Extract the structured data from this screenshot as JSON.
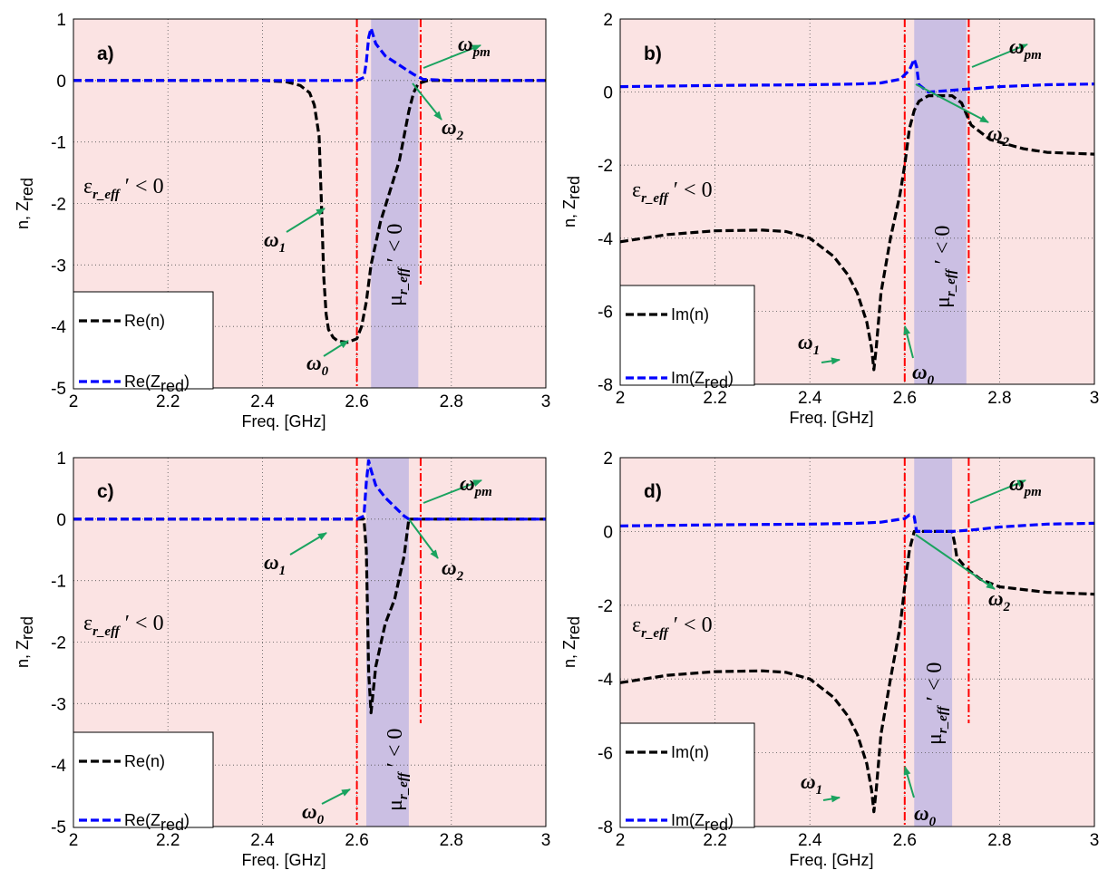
{
  "chart_data": [
    {
      "panel_label": "a)",
      "type": "line",
      "xlabel": "Freq. [GHz]",
      "ylabel": "n, Z",
      "ylabel_sub": "red",
      "xlim": [
        2,
        3
      ],
      "ylim": [
        -5,
        1
      ],
      "xticks": [
        "2",
        "2.2",
        "2.4",
        "2.6",
        "2.8",
        "3"
      ],
      "yticks": [
        "1",
        "0",
        "-1",
        "-2",
        "-3",
        "-4",
        "-5"
      ],
      "grid": true,
      "shaded_band": [
        2.63,
        2.73
      ],
      "vlines": [
        2.6,
        2.735
      ],
      "legend": {
        "placement": "bottom-left",
        "entries": [
          "Re(n)",
          "Re(Z"
        ],
        "sub": [
          "",
          "red"
        ],
        "close": [
          "",
          ")"
        ]
      },
      "region_labels": {
        "eps": "ε",
        "eps_sub": "r_eff",
        "eps_rest": "′ < 0",
        "mu": "μ",
        "mu_sub": "r_eff",
        "mu_rest": "′ < 0"
      },
      "annotations": [
        {
          "text": "ω",
          "sub": "pm"
        },
        {
          "text": "ω",
          "sub": "2"
        },
        {
          "text": "ω",
          "sub": "1"
        },
        {
          "text": "ω",
          "sub": "0"
        }
      ],
      "series": [
        {
          "name": "Re(n)",
          "color": "#000000",
          "x": [
            2.0,
            2.2,
            2.4,
            2.45,
            2.48,
            2.5,
            2.51,
            2.52,
            2.525,
            2.53,
            2.535,
            2.54,
            2.55,
            2.56,
            2.58,
            2.6,
            2.61,
            2.62,
            2.63,
            2.65,
            2.67,
            2.69,
            2.7,
            2.71,
            2.72,
            2.73,
            2.75,
            2.8,
            3.0
          ],
          "y": [
            0,
            0,
            0,
            -0.02,
            -0.08,
            -0.2,
            -0.4,
            -0.9,
            -2.0,
            -3.2,
            -3.8,
            -4.05,
            -4.18,
            -4.24,
            -4.26,
            -4.2,
            -4.0,
            -3.6,
            -3.0,
            -2.3,
            -1.8,
            -1.3,
            -0.9,
            -0.5,
            -0.2,
            -0.05,
            0,
            0,
            0
          ]
        },
        {
          "name": "Re(Z)",
          "color": "#0000ff",
          "x": [
            2.0,
            2.5,
            2.6,
            2.615,
            2.62,
            2.625,
            2.63,
            2.64,
            2.66,
            2.68,
            2.7,
            2.72,
            2.74,
            2.8,
            3.0
          ],
          "y": [
            0,
            0,
            0,
            0.05,
            0.3,
            0.7,
            0.85,
            0.6,
            0.4,
            0.3,
            0.2,
            0.1,
            0.02,
            0,
            0
          ]
        }
      ]
    },
    {
      "panel_label": "b)",
      "type": "line",
      "xlabel": "Freq. [GHz]",
      "ylabel": "n, Z",
      "ylabel_sub": "red",
      "xlim": [
        2,
        3
      ],
      "ylim": [
        -8,
        2
      ],
      "xticks": [
        "2",
        "2.2",
        "2.4",
        "2.6",
        "2.8",
        "3"
      ],
      "yticks": [
        "2",
        "0",
        "-2",
        "-4",
        "-6",
        "-8"
      ],
      "grid": true,
      "shaded_band": [
        2.62,
        2.73
      ],
      "vlines": [
        2.6,
        2.735
      ],
      "legend": {
        "placement": "bottom-left",
        "entries": [
          "Im(n)",
          "Im(Z"
        ],
        "sub": [
          "",
          "red"
        ],
        "close": [
          "",
          ")"
        ]
      },
      "region_labels": {
        "eps": "ε",
        "eps_sub": "r_eff",
        "eps_rest": "′ < 0",
        "mu": "μ",
        "mu_sub": "r_eff",
        "mu_rest": "′ < 0"
      },
      "annotations": [
        {
          "text": "ω",
          "sub": "pm"
        },
        {
          "text": "ω",
          "sub": "2"
        },
        {
          "text": "ω",
          "sub": "1"
        },
        {
          "text": "ω",
          "sub": "0"
        }
      ],
      "series": [
        {
          "name": "Im(n)",
          "color": "#000000",
          "x": [
            2.0,
            2.05,
            2.1,
            2.2,
            2.3,
            2.35,
            2.4,
            2.45,
            2.48,
            2.5,
            2.52,
            2.53,
            2.535,
            2.54,
            2.55,
            2.57,
            2.59,
            2.6,
            2.61,
            2.62,
            2.63,
            2.65,
            2.7,
            2.72,
            2.74,
            2.78,
            2.85,
            2.9,
            3.0
          ],
          "y": [
            -4.1,
            -4.0,
            -3.9,
            -3.8,
            -3.78,
            -3.82,
            -4.0,
            -4.5,
            -5.0,
            -5.5,
            -6.3,
            -7.0,
            -7.6,
            -7.0,
            -5.5,
            -4.0,
            -2.8,
            -2.0,
            -1.0,
            -0.5,
            -0.25,
            -0.1,
            -0.1,
            -0.3,
            -0.9,
            -1.3,
            -1.55,
            -1.65,
            -1.7
          ]
        },
        {
          "name": "Im(Z)",
          "color": "#0000ff",
          "x": [
            2.0,
            2.2,
            2.4,
            2.5,
            2.55,
            2.59,
            2.61,
            2.62,
            2.625,
            2.63,
            2.65,
            2.7,
            2.75,
            2.8,
            2.9,
            3.0
          ],
          "y": [
            0.15,
            0.18,
            0.2,
            0.22,
            0.25,
            0.35,
            0.6,
            0.9,
            0.7,
            0.2,
            0.0,
            0.05,
            0.1,
            0.15,
            0.2,
            0.22
          ]
        }
      ]
    },
    {
      "panel_label": "c)",
      "type": "line",
      "xlabel": "Freq. [GHz]",
      "ylabel": "n, Z",
      "ylabel_sub": "red",
      "xlim": [
        2,
        3
      ],
      "ylim": [
        -5,
        1
      ],
      "xticks": [
        "2",
        "2.2",
        "2.4",
        "2.6",
        "2.8",
        "3"
      ],
      "yticks": [
        "1",
        "0",
        "-1",
        "-2",
        "-3",
        "-4",
        "-5"
      ],
      "grid": true,
      "shaded_band": [
        2.62,
        2.71
      ],
      "vlines": [
        2.6,
        2.735
      ],
      "legend": {
        "placement": "bottom-left",
        "entries": [
          "Re(n)",
          "Re(Z"
        ],
        "sub": [
          "",
          "red"
        ],
        "close": [
          "",
          ")"
        ]
      },
      "region_labels": {
        "eps": "ε",
        "eps_sub": "r_eff",
        "eps_rest": "′ < 0",
        "mu": "μ",
        "mu_sub": "r_eff",
        "mu_rest": "′ < 0"
      },
      "annotations": [
        {
          "text": "ω",
          "sub": "pm"
        },
        {
          "text": "ω",
          "sub": "2"
        },
        {
          "text": "ω",
          "sub": "1"
        },
        {
          "text": "ω",
          "sub": "0"
        }
      ],
      "series": [
        {
          "name": "Re(n)",
          "color": "#000000",
          "x": [
            2.0,
            2.6,
            2.615,
            2.62,
            2.625,
            2.63,
            2.64,
            2.66,
            2.68,
            2.7,
            2.71,
            2.72,
            3.0
          ],
          "y": [
            0,
            0,
            0,
            -0.5,
            -2.5,
            -3.15,
            -2.4,
            -1.7,
            -1.3,
            -0.6,
            0,
            0,
            0
          ]
        },
        {
          "name": "Re(Z)",
          "color": "#0000ff",
          "x": [
            2.0,
            2.6,
            2.615,
            2.62,
            2.625,
            2.63,
            2.64,
            2.66,
            2.68,
            2.7,
            2.71,
            3.0
          ],
          "y": [
            0,
            0,
            0.05,
            0.6,
            0.95,
            0.8,
            0.55,
            0.35,
            0.2,
            0.05,
            0,
            0
          ]
        }
      ]
    },
    {
      "panel_label": "d)",
      "type": "line",
      "xlabel": "Freq. [GHz]",
      "ylabel": "n, Z",
      "ylabel_sub": "red",
      "xlim": [
        2,
        3
      ],
      "ylim": [
        -8,
        2
      ],
      "xticks": [
        "2",
        "2.2",
        "2.4",
        "2.6",
        "2.8",
        "3"
      ],
      "yticks": [
        "2",
        "0",
        "-2",
        "-4",
        "-6",
        "-8"
      ],
      "grid": true,
      "shaded_band": [
        2.62,
        2.7
      ],
      "vlines": [
        2.6,
        2.735
      ],
      "legend": {
        "placement": "bottom-left",
        "entries": [
          "Im(n)",
          "Im(Z"
        ],
        "sub": [
          "",
          "red"
        ],
        "close": [
          "",
          ")"
        ]
      },
      "region_labels": {
        "eps": "ε",
        "eps_sub": "r_eff",
        "eps_rest": "′ < 0",
        "mu": "μ",
        "mu_sub": "r_eff",
        "mu_rest": "′ < 0"
      },
      "annotations": [
        {
          "text": "ω",
          "sub": "pm"
        },
        {
          "text": "ω",
          "sub": "2"
        },
        {
          "text": "ω",
          "sub": "1"
        },
        {
          "text": "ω",
          "sub": "0"
        }
      ],
      "series": [
        {
          "name": "Im(n)",
          "color": "#000000",
          "x": [
            2.0,
            2.05,
            2.1,
            2.2,
            2.3,
            2.35,
            2.4,
            2.45,
            2.48,
            2.5,
            2.52,
            2.53,
            2.535,
            2.54,
            2.55,
            2.57,
            2.59,
            2.6,
            2.61,
            2.62,
            2.63,
            2.65,
            2.7,
            2.705,
            2.71,
            2.73,
            2.76,
            2.8,
            2.9,
            3.0
          ],
          "y": [
            -4.1,
            -4.0,
            -3.9,
            -3.8,
            -3.78,
            -3.82,
            -4.0,
            -4.5,
            -5.0,
            -5.5,
            -6.3,
            -7.0,
            -7.6,
            -7.0,
            -5.5,
            -4.0,
            -2.6,
            -1.5,
            -0.5,
            0.0,
            0.0,
            0.0,
            0.0,
            -0.3,
            -0.7,
            -1.0,
            -1.3,
            -1.5,
            -1.65,
            -1.7
          ]
        },
        {
          "name": "Im(Z)",
          "color": "#0000ff",
          "x": [
            2.0,
            2.2,
            2.4,
            2.5,
            2.55,
            2.6,
            2.61,
            2.62,
            2.625,
            2.7,
            2.75,
            2.8,
            2.9,
            3.0
          ],
          "y": [
            0.15,
            0.18,
            0.2,
            0.22,
            0.25,
            0.35,
            0.45,
            0.4,
            0.0,
            0.0,
            0.05,
            0.12,
            0.2,
            0.22
          ]
        }
      ]
    }
  ]
}
